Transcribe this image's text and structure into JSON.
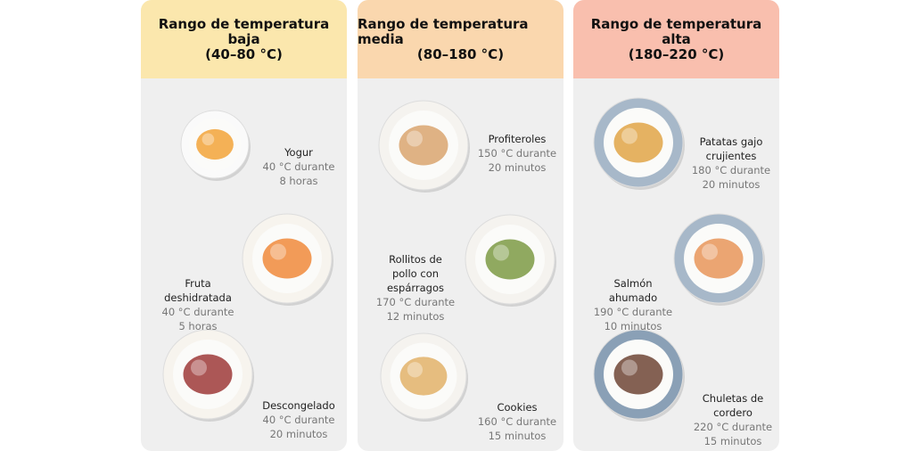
{
  "columns": [
    {
      "title": [
        "Rango de temperatura",
        "baja",
        "(40–80 °C)"
      ],
      "items": [
        {
          "name": [
            "Yogur"
          ],
          "detail": [
            "40 °C durante",
            "8 horas"
          ]
        },
        {
          "name": [
            "Fruta",
            "deshidratada"
          ],
          "detail": [
            "40 °C durante",
            "5 horas"
          ]
        },
        {
          "name": [
            "Descongelado"
          ],
          "detail": [
            "40 °C durante",
            "20 minutos"
          ]
        }
      ]
    },
    {
      "title": [
        "Rango de temperatura media",
        "(80–180 °C)"
      ],
      "items": [
        {
          "name": [
            "Profiteroles"
          ],
          "detail": [
            "150 °C durante",
            "20 minutos"
          ]
        },
        {
          "name": [
            "Rollitos de",
            "pollo con",
            "espárragos"
          ],
          "detail": [
            "170 °C durante",
            "12 minutos"
          ]
        },
        {
          "name": [
            "Cookies"
          ],
          "detail": [
            "160 °C durante",
            "15 minutos"
          ]
        }
      ]
    },
    {
      "title": [
        "Rango de temperatura",
        "alta",
        "(180–220 °C)"
      ],
      "items": [
        {
          "name": [
            "Patatas gajo",
            "crujientes"
          ],
          "detail": [
            "180 °C durante",
            "20 minutos"
          ]
        },
        {
          "name": [
            "Salmón",
            "ahumado"
          ],
          "detail": [
            "190 °C durante",
            "10 minutos"
          ]
        },
        {
          "name": [
            "Chuletas de",
            "cordero"
          ],
          "detail": [
            "220 °C durante",
            "15 minutos"
          ]
        }
      ]
    }
  ]
}
